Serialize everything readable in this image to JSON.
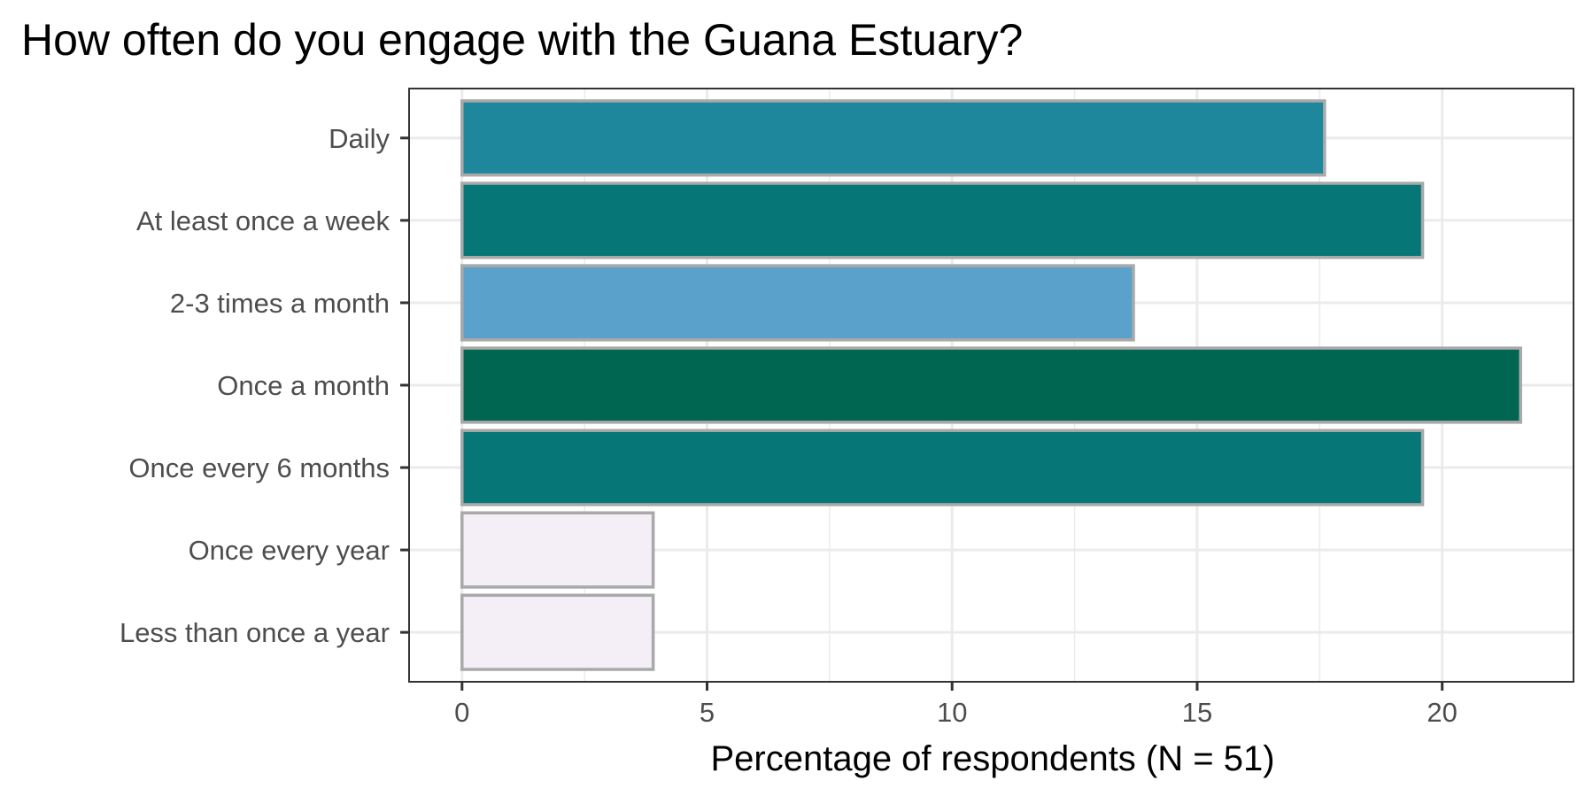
{
  "chart_data": {
    "type": "bar",
    "orientation": "horizontal",
    "title": "How often do you engage with the Guana Estuary?",
    "xlabel": "Percentage of respondents (N = 51)",
    "ylabel": "",
    "categories": [
      "Daily",
      "At least once a week",
      "2-3 times a month",
      "Once a month",
      "Once every 6 months",
      "Once every year",
      "Less than once a year"
    ],
    "values": [
      17.6,
      19.6,
      13.7,
      21.6,
      19.6,
      3.9,
      3.9
    ],
    "colors": [
      "#1f879c",
      "#067676",
      "#5aa1cb",
      "#006651",
      "#067676",
      "#f4eef7",
      "#f4eef7"
    ],
    "bar_outline_color": "#a9a9a9",
    "xlim": [
      -1.08,
      22.68
    ],
    "xticks": [
      0,
      5,
      10,
      15,
      20
    ],
    "xtick_labels": [
      "0",
      "5",
      "10",
      "15",
      "20"
    ],
    "grid": true,
    "legend": "none"
  }
}
